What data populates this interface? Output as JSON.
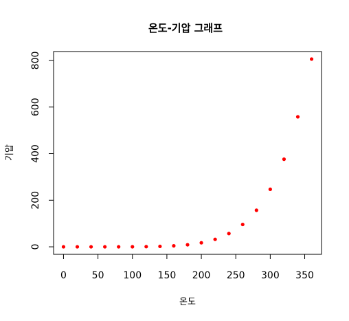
{
  "chart_data": {
    "type": "scatter",
    "title": "온도-기압 그래프",
    "xlabel": "온도",
    "ylabel": "기압",
    "x": [
      0,
      20,
      40,
      60,
      80,
      100,
      120,
      140,
      160,
      180,
      200,
      220,
      240,
      260,
      280,
      300,
      320,
      340,
      360
    ],
    "y": [
      0.0002,
      0.0012,
      0.006,
      0.03,
      0.09,
      0.27,
      0.75,
      1.85,
      4.2,
      8.8,
      17.3,
      32.1,
      57,
      96,
      157,
      247,
      376,
      558,
      806
    ],
    "x_ticks": [
      "0",
      "50",
      "100",
      "150",
      "200",
      "250",
      "300",
      "350"
    ],
    "y_ticks": [
      "0",
      "200",
      "400",
      "600",
      "800"
    ],
    "xlim": [
      -14.4,
      374.4
    ],
    "ylim": [
      -32.24,
      838.24
    ],
    "point_color": "#ff0000",
    "grid": false,
    "legend": "none"
  }
}
